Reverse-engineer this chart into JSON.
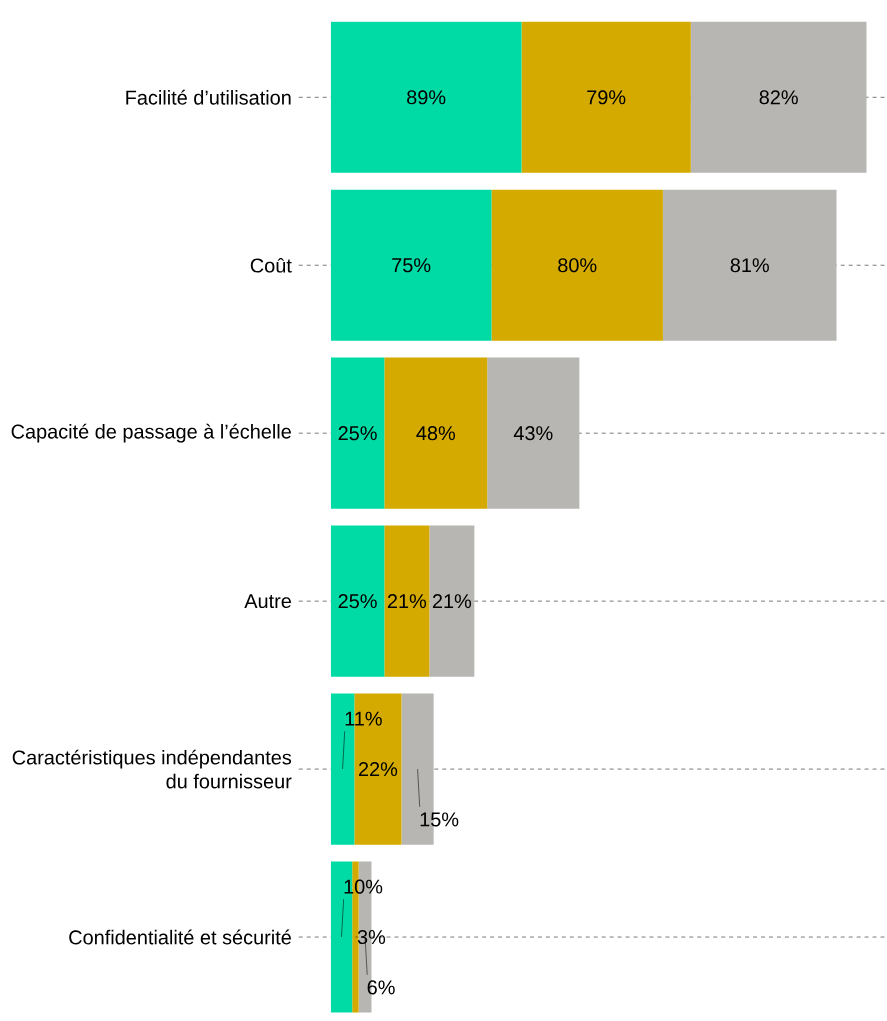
{
  "chart_data": {
    "type": "bar",
    "orientation": "horizontal",
    "stacked": true,
    "grid": "y",
    "categories": [
      "Facilité d’utilisation",
      "Coût",
      "Capacité de passage à l’échelle",
      "Autre",
      "Caractéristiques indépendantes du fournisseur",
      "Confidentialité et sécurité"
    ],
    "series": [
      {
        "color": "#00dba6",
        "values": [
          89,
          75,
          25,
          25,
          11,
          10
        ],
        "value_labels": [
          "89%",
          "75%",
          "25%",
          "25%",
          "11%",
          "10%"
        ]
      },
      {
        "color": "#d4aa00",
        "values": [
          79,
          80,
          48,
          21,
          22,
          3
        ],
        "value_labels": [
          "79%",
          "80%",
          "48%",
          "21%",
          "22%",
          "3%"
        ]
      },
      {
        "color": "#b8b6b2",
        "values": [
          82,
          81,
          43,
          21,
          15,
          6
        ],
        "value_labels": [
          "82%",
          "81%",
          "43%",
          "21%",
          "15%",
          "6%"
        ]
      }
    ]
  }
}
